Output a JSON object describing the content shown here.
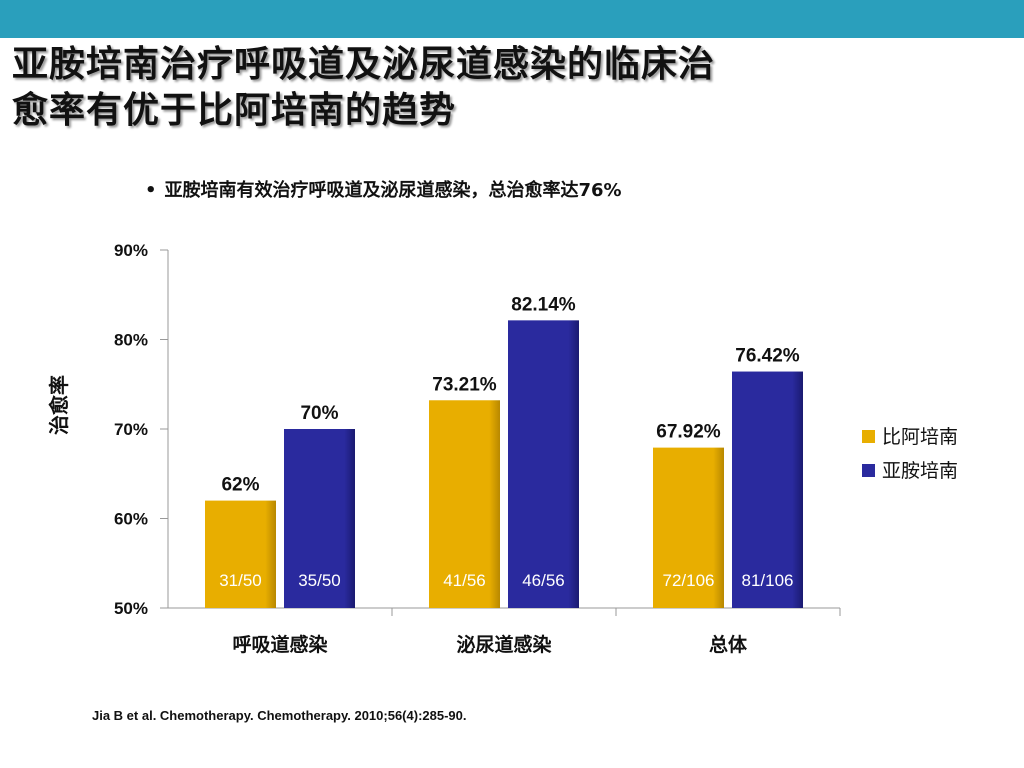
{
  "slide": {
    "title_line1": "亚胺培南治疗呼吸道及泌尿道感染的临床治",
    "title_line2": "愈率有优于比阿培南的趋势",
    "bullet_dot": "•",
    "bullet": "亚胺培南有效治疗呼吸道及泌尿道感染，总治愈率达76%",
    "citation": "Jia B et al. Chemotherapy. Chemotherapy. 2010;56(4):285-90."
  },
  "colors": {
    "band": "#2a9fbc",
    "biapenem": "#e8ae00",
    "imipenem": "#2a2a9e"
  },
  "chart_data": {
    "type": "bar",
    "ylabel": "治愈率",
    "ylim": [
      50,
      90
    ],
    "yticks": [
      "50%",
      "60%",
      "70%",
      "80%",
      "90%"
    ],
    "ytick_values": [
      50,
      60,
      70,
      80,
      90
    ],
    "categories": [
      "呼吸道感染",
      "泌尿道感染",
      "总体"
    ],
    "legend_position": "right",
    "grid": false,
    "series": [
      {
        "name": "比阿培南",
        "values": [
          62,
          73.21,
          67.92
        ],
        "value_labels": [
          "62%",
          "73.21%",
          "67.92%"
        ],
        "counts": [
          "31/50",
          "41/56",
          "72/106"
        ]
      },
      {
        "name": "亚胺培南",
        "values": [
          70,
          82.14,
          76.42
        ],
        "value_labels": [
          "70%",
          "82.14%",
          "76.42%"
        ],
        "counts": [
          "35/50",
          "46/56",
          "81/106"
        ]
      }
    ]
  }
}
